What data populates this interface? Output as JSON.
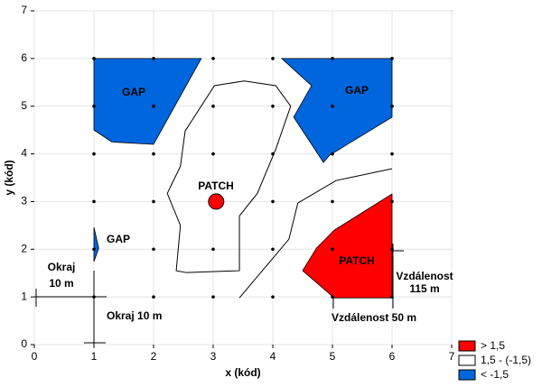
{
  "chart_data": {
    "type": "contour",
    "x_label": "x (kód)",
    "y_label": "y (kód)",
    "xlim": [
      0,
      7
    ],
    "xticks": [
      0,
      1,
      2,
      3,
      4,
      5,
      6,
      7
    ],
    "ylim": [
      0,
      7
    ],
    "yticks": [
      0,
      1,
      2,
      3,
      4,
      5,
      6,
      7
    ],
    "grid": true,
    "legend": "bottom-right",
    "series": [
      {
        "name": "> 1,5",
        "color": "#ff0000",
        "polygons": [
          {
            "x": [
              5.03,
              6.0,
              6.0,
              5.03,
              4.5,
              4.73
            ],
            "y": [
              2.4,
              3.16,
              0.98,
              0.98,
              1.55,
              2.02
            ]
          }
        ]
      },
      {
        "name": "1,5 - (-1,5)",
        "color": "#ffffff",
        "polygons": []
      },
      {
        "name": "< -1,5",
        "color": "#0066dd",
        "polygons": [
          {
            "x": [
              1.0,
              2.8,
              2.0,
              1.3,
              1.0
            ],
            "y": [
              6.0,
              6.0,
              4.2,
              4.25,
              4.5
            ]
          },
          {
            "x": [
              4.15,
              6.0,
              6.0,
              4.95,
              4.85,
              4.35,
              4.65
            ],
            "y": [
              6.0,
              6.0,
              4.77,
              3.97,
              3.82,
              4.77,
              5.43
            ]
          },
          {
            "x": [
              1.0,
              1.08,
              1.0
            ],
            "y": [
              2.46,
              2.02,
              1.74
            ]
          }
        ]
      }
    ],
    "contour_lines": [
      {
        "x": [
          2.55,
          2.38,
          2.45,
          2.23,
          2.45,
          2.53,
          3.02,
          3.52,
          4.05,
          4.3,
          4.05,
          3.74,
          3.44,
          3.44,
          2.55
        ],
        "y": [
          1.51,
          1.55,
          2.5,
          3.17,
          3.74,
          4.48,
          5.43,
          5.53,
          5.43,
          5.0,
          4.1,
          3.17,
          2.7,
          1.55,
          1.51
        ]
      },
      {
        "x": [
          3.44,
          4.27,
          4.42,
          5.06,
          6.0
        ],
        "y": [
          0.98,
          2.21,
          2.97,
          3.44,
          3.69
        ]
      }
    ],
    "marker": {
      "x": 3.05,
      "y": 3.0,
      "color": "#ff0000"
    },
    "points": {
      "x": [
        1,
        2,
        3,
        4,
        5,
        6,
        1,
        2,
        3,
        4,
        5,
        6,
        1,
        2,
        3,
        4,
        5,
        6,
        1,
        2,
        3,
        4,
        5,
        6,
        1,
        2,
        3,
        4,
        5,
        6,
        1,
        2,
        3,
        4,
        5,
        6
      ],
      "y": [
        1,
        1,
        1,
        1,
        1,
        1,
        2,
        2,
        2,
        2,
        2,
        2,
        3,
        3,
        3,
        3,
        3,
        3,
        4,
        4,
        4,
        4,
        4,
        4,
        5,
        5,
        5,
        5,
        5,
        5,
        6,
        6,
        6,
        6,
        6,
        6
      ]
    },
    "annotations": [
      "GAP",
      "GAP",
      "GAP",
      "PATCH",
      "PATCH",
      "Okraj",
      "10 m",
      "Okraj 10 m",
      "Vzdálenost 50 m",
      "Vzdálenost",
      "115 m"
    ]
  }
}
